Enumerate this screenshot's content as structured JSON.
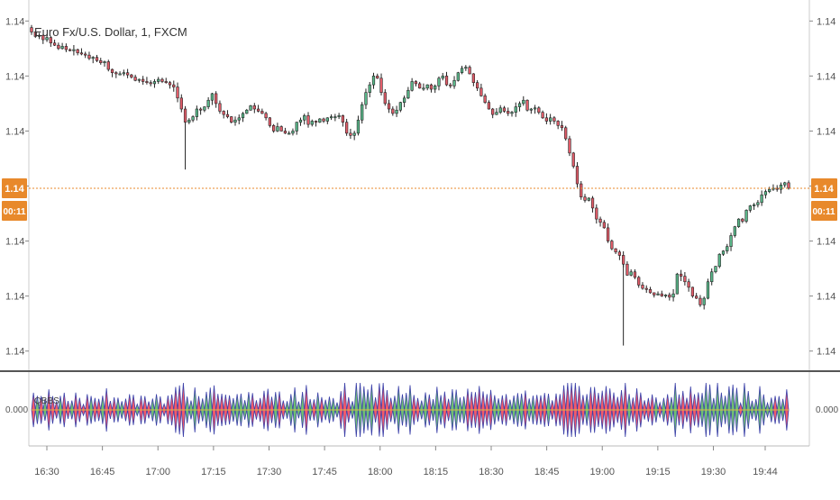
{
  "chart_title": "Euro Fx/U.S. Dollar, 1, FXCM",
  "indicator_label": "QBBS",
  "price_badge": {
    "label": "1.14",
    "countdown": "00:11",
    "value": 1.14128
  },
  "colors": {
    "up": "#5ab88a",
    "down": "#e35d6a",
    "wick": "#222222",
    "price_line": "#e8892b",
    "badge": "#e8892b",
    "axis_text": "#555555",
    "pane_divider": "#555555",
    "ind_pos": "#6fbf73",
    "ind_neg": "#f25a6a",
    "ind_edge": "#3a3fa8"
  },
  "chart_data": {
    "type": "candlestick",
    "title": "Euro Fx/U.S. Dollar, 1, FXCM",
    "x_axis": {
      "tick_labels": [
        "16:30",
        "16:45",
        "17:00",
        "17:15",
        "17:30",
        "17:45",
        "18:00",
        "18:15",
        "18:30",
        "18:45",
        "19:00",
        "19:15",
        "19:30",
        "19:44"
      ],
      "tick_minutes": [
        0,
        15,
        30,
        45,
        60,
        75,
        90,
        105,
        120,
        135,
        150,
        165,
        180,
        194
      ],
      "start_time": "16:24",
      "interval": "1 minute"
    },
    "y_axis": {
      "tick_labels": [
        "1.14",
        "1.14",
        "1.14",
        "1.14",
        "1.14",
        "1.14",
        "1.14"
      ],
      "tick_values": [
        1.1428,
        1.1423,
        1.1418,
        1.1413,
        1.1408,
        1.1403,
        1.1398
      ],
      "range": [
        1.13965,
        1.14295
      ]
    },
    "closes": [
      1.1427,
      1.14266,
      1.14267,
      1.14263,
      1.14265,
      1.1426,
      1.14258,
      1.14255,
      1.14257,
      1.14254,
      1.14253,
      1.14254,
      1.14251,
      1.1425,
      1.14249,
      1.14246,
      1.14247,
      1.14244,
      1.14242,
      1.14243,
      1.14236,
      1.14233,
      1.14232,
      1.14232,
      1.14233,
      1.14231,
      1.14229,
      1.14226,
      1.14227,
      1.14225,
      1.14224,
      1.14223,
      1.14225,
      1.14227,
      1.14225,
      1.14224,
      1.14222,
      1.1422,
      1.1421,
      1.142,
      1.14188,
      1.1419,
      1.14193,
      1.142,
      1.14199,
      1.14202,
      1.14208,
      1.14214,
      1.14205,
      1.14198,
      1.14195,
      1.14193,
      1.14188,
      1.1419,
      1.14192,
      1.14196,
      1.14199,
      1.14203,
      1.142,
      1.14198,
      1.14196,
      1.14192,
      1.14185,
      1.1418,
      1.14184,
      1.1418,
      1.14178,
      1.14178,
      1.1418,
      1.14188,
      1.1419,
      1.14194,
      1.14186,
      1.14189,
      1.14188,
      1.14191,
      1.14189,
      1.14192,
      1.14193,
      1.14193,
      1.14194,
      1.14188,
      1.14178,
      1.14176,
      1.14178,
      1.1419,
      1.14204,
      1.14215,
      1.14222,
      1.1423,
      1.14228,
      1.14215,
      1.14205,
      1.142,
      1.14196,
      1.14199,
      1.14206,
      1.1421,
      1.14217,
      1.14225,
      1.14223,
      1.14219,
      1.14219,
      1.14222,
      1.14218,
      1.14221,
      1.14228,
      1.1423,
      1.14222,
      1.14221,
      1.14226,
      1.14233,
      1.14237,
      1.14238,
      1.14232,
      1.14224,
      1.14219,
      1.14212,
      1.14206,
      1.142,
      1.14195,
      1.14197,
      1.14201,
      1.14198,
      1.14196,
      1.14197,
      1.14202,
      1.14205,
      1.14208,
      1.14199,
      1.142,
      1.14201,
      1.14197,
      1.14192,
      1.14189,
      1.14192,
      1.14189,
      1.14185,
      1.14183,
      1.14173,
      1.1416,
      1.14148,
      1.14132,
      1.1412,
      1.14117,
      1.14119,
      1.1411,
      1.141,
      1.14097,
      1.14092,
      1.1408,
      1.14073,
      1.1407,
      1.14067,
      1.14059,
      1.14049,
      1.14052,
      1.14047,
      1.1404,
      1.14037,
      1.14036,
      1.14033,
      1.14031,
      1.14032,
      1.1403,
      1.14031,
      1.14029,
      1.14032,
      1.1405,
      1.14048,
      1.14043,
      1.14038,
      1.1403,
      1.14028,
      1.14022,
      1.14028,
      1.14043,
      1.14052,
      1.14057,
      1.14068,
      1.14071,
      1.14075,
      1.14085,
      1.14093,
      1.141,
      1.14098,
      1.14108,
      1.14112,
      1.14113,
      1.14115,
      1.14122,
      1.14125,
      1.14127,
      1.14128,
      1.14127,
      1.14131,
      1.14133,
      1.14128
    ]
  }
}
